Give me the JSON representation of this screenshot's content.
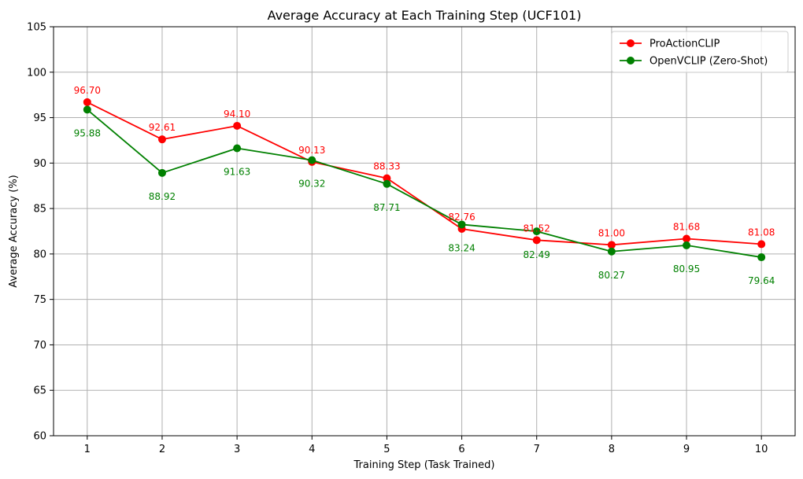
{
  "chart_data": {
    "type": "line",
    "title": "Average Accuracy at Each Training Step (UCF101)",
    "xlabel": "Training Step (Task Trained)",
    "ylabel": "Average Accuracy (%)",
    "x": [
      1,
      2,
      3,
      4,
      5,
      6,
      7,
      8,
      9,
      10
    ],
    "xlim": [
      0.55,
      10.45
    ],
    "ylim": [
      60,
      105
    ],
    "yticks": [
      60,
      65,
      70,
      75,
      80,
      85,
      90,
      95,
      100,
      105
    ],
    "grid": true,
    "legend_position": "top-right",
    "series": [
      {
        "name": "ProActionCLIP",
        "color": "#ff0000",
        "marker": "circle",
        "values": [
          96.7,
          92.61,
          94.1,
          90.13,
          88.33,
          82.76,
          81.52,
          81.0,
          81.68,
          81.08
        ],
        "labels": [
          "96.70",
          "92.61",
          "94.10",
          "90.13",
          "88.33",
          "82.76",
          "81.52",
          "81.00",
          "81.68",
          "81.08"
        ],
        "label_position": "above"
      },
      {
        "name": "OpenVCLIP (Zero-Shot)",
        "color": "#008000",
        "marker": "circle",
        "values": [
          95.88,
          88.92,
          91.63,
          90.32,
          87.71,
          83.24,
          82.49,
          80.27,
          80.95,
          79.64
        ],
        "labels": [
          "95.88",
          "88.92",
          "91.63",
          "90.32",
          "87.71",
          "83.24",
          "82.49",
          "80.27",
          "80.95",
          "79.64"
        ],
        "label_position": "below"
      }
    ]
  }
}
